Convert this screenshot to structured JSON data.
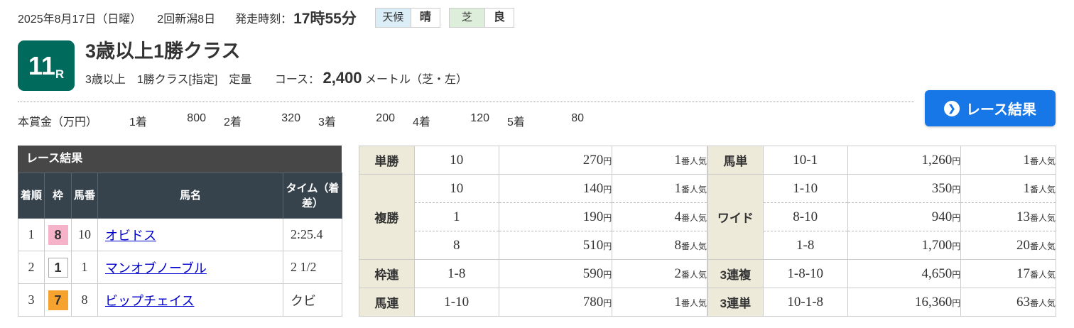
{
  "colors": {
    "accent_teal": "#006a5c",
    "button_blue": "#1877e6",
    "link_blue": "#0000cc",
    "weather_badge_bg": "#dbeef8",
    "turf_badge_bg": "#ddefdb",
    "payout_label_bg": "#edead9",
    "caption_bar_bg": "#474747",
    "column_header_bg": "#37434c"
  },
  "top_bar": {
    "date": "2025年8月17日（日曜）",
    "meeting": "2回新潟8日",
    "start_label": "発走時刻：",
    "start_time": "17時55分",
    "weather_label": "天候",
    "weather_value": "晴",
    "turf_label": "芝",
    "turf_value": "良"
  },
  "header": {
    "race_number": "11",
    "race_number_suffix": "R",
    "title": "3歳以上1勝クラス",
    "conditions": "3歳以上　1勝クラス[指定]　定量",
    "course_label": "コース：",
    "course_distance": "2,400",
    "course_unit": "メートル（芝・左）"
  },
  "result_button": {
    "label": "レース結果",
    "icon": "chevron-right-circle"
  },
  "prize": {
    "label": "本賞金（万円）",
    "items": [
      {
        "place": "1着",
        "amount": "800"
      },
      {
        "place": "2着",
        "amount": "320"
      },
      {
        "place": "3着",
        "amount": "200"
      },
      {
        "place": "4着",
        "amount": "120"
      },
      {
        "place": "5着",
        "amount": "80"
      }
    ]
  },
  "result_table": {
    "caption": "レース結果",
    "headers": [
      "着順",
      "枠",
      "馬番",
      "馬名",
      "タイム（着差）"
    ],
    "rows": [
      {
        "rank": "1",
        "waku": "8",
        "waku_color": "#f5b2c8",
        "horse_no": "10",
        "name": "オビドス",
        "time": "2:25.4"
      },
      {
        "rank": "2",
        "waku": "1",
        "waku_color": "#ffffff",
        "horse_no": "1",
        "name": "マンオブノーブル",
        "time": "2 1/2"
      },
      {
        "rank": "3",
        "waku": "7",
        "waku_color": "#f6a22e",
        "horse_no": "8",
        "name": "ビップチェイス",
        "time": "クビ"
      }
    ]
  },
  "payout": {
    "units": {
      "yen": "円",
      "pop": "番人気"
    },
    "left": [
      {
        "label": "単勝",
        "rows": [
          {
            "combo": "10",
            "amount": "270",
            "pop": "1"
          }
        ]
      },
      {
        "label": "複勝",
        "rows": [
          {
            "combo": "10",
            "amount": "140",
            "pop": "1"
          },
          {
            "combo": "1",
            "amount": "190",
            "pop": "4"
          },
          {
            "combo": "8",
            "amount": "510",
            "pop": "8"
          }
        ]
      },
      {
        "label": "枠連",
        "rows": [
          {
            "combo": "1-8",
            "amount": "590",
            "pop": "2"
          }
        ]
      },
      {
        "label": "馬連",
        "rows": [
          {
            "combo": "1-10",
            "amount": "780",
            "pop": "1"
          }
        ]
      }
    ],
    "right": [
      {
        "label": "馬単",
        "rows": [
          {
            "combo": "10-1",
            "amount": "1,260",
            "pop": "1"
          }
        ]
      },
      {
        "label": "ワイド",
        "rows": [
          {
            "combo": "1-10",
            "amount": "350",
            "pop": "1"
          },
          {
            "combo": "8-10",
            "amount": "940",
            "pop": "13"
          },
          {
            "combo": "1-8",
            "amount": "1,700",
            "pop": "20"
          }
        ]
      },
      {
        "label": "3連複",
        "rows": [
          {
            "combo": "1-8-10",
            "amount": "4,650",
            "pop": "17"
          }
        ]
      },
      {
        "label": "3連単",
        "rows": [
          {
            "combo": "10-1-8",
            "amount": "16,360",
            "pop": "63"
          }
        ]
      }
    ]
  }
}
